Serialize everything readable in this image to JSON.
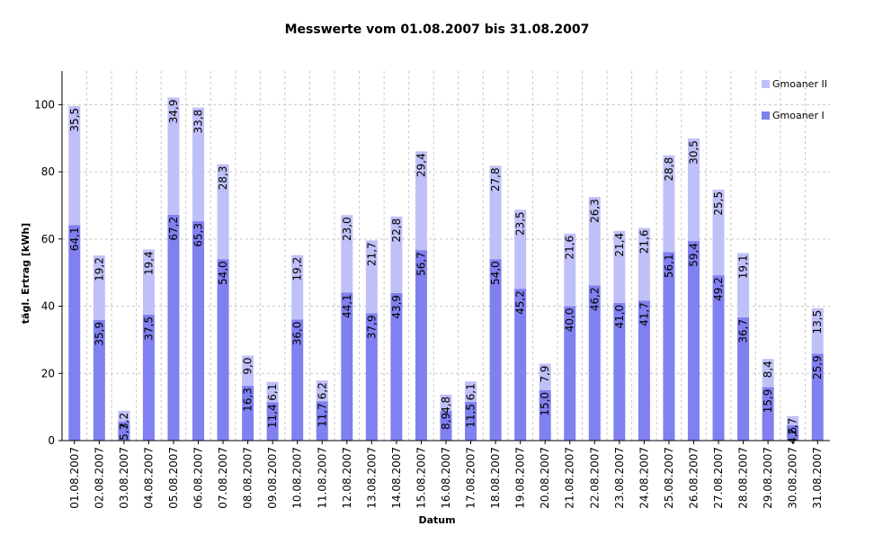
{
  "chart_data": {
    "type": "bar",
    "stacked": true,
    "title": "Messwerte vom 01.08.2007 bis 31.08.2007",
    "xlabel": "Datum",
    "ylabel": "tägl. Ertrag [kWh]",
    "ylim": [
      0,
      110
    ],
    "yticks": [
      0,
      20,
      40,
      60,
      80,
      100
    ],
    "grid": true,
    "legend_position": "top-right",
    "categories": [
      "01.08.2007",
      "02.08.2007",
      "03.08.2007",
      "04.08.2007",
      "05.08.2007",
      "06.08.2007",
      "07.08.2007",
      "08.08.2007",
      "09.08.2007",
      "10.08.2007",
      "11.08.2007",
      "12.08.2007",
      "13.08.2007",
      "14.08.2007",
      "15.08.2007",
      "16.08.2007",
      "17.08.2007",
      "18.08.2007",
      "19.08.2007",
      "20.08.2007",
      "21.08.2007",
      "22.08.2007",
      "23.08.2007",
      "24.08.2007",
      "25.08.2007",
      "26.08.2007",
      "27.08.2007",
      "28.08.2007",
      "29.08.2007",
      "30.08.2007",
      "31.08.2007"
    ],
    "series": [
      {
        "name": "Gmoaner I",
        "color": "#8080f0",
        "values": [
          64.1,
          35.9,
          5.7,
          37.5,
          67.2,
          65.3,
          54.0,
          16.3,
          11.4,
          36.0,
          11.7,
          44.1,
          37.9,
          43.9,
          56.7,
          8.9,
          11.5,
          54.0,
          45.2,
          15.0,
          40.0,
          46.2,
          41.0,
          41.7,
          56.1,
          59.4,
          49.2,
          36.7,
          15.9,
          4.6,
          25.9
        ],
        "labels": [
          "64,1",
          "35,9",
          "5,7",
          "37,5",
          "67,2",
          "65,3",
          "54,0",
          "16,3",
          "11,4",
          "36,0",
          "11,7",
          "44,1",
          "37,9",
          "43,9",
          "56,7",
          "8,9",
          "11,5",
          "54,0",
          "45,2",
          "15,0",
          "40,0",
          "46,2",
          "41,0",
          "41,7",
          "56,1",
          "59,4",
          "49,2",
          "36,7",
          "15,9",
          "4,6",
          "25,9"
        ]
      },
      {
        "name": "Gmoaner II",
        "color": "#c0c0f8",
        "values": [
          35.5,
          19.2,
          3.2,
          19.4,
          34.9,
          33.8,
          28.3,
          9.0,
          6.1,
          19.2,
          6.2,
          23.0,
          21.7,
          22.8,
          29.4,
          4.8,
          6.1,
          27.8,
          23.5,
          7.9,
          21.6,
          26.3,
          21.4,
          21.6,
          28.8,
          30.5,
          25.5,
          19.1,
          8.4,
          2.7,
          13.5
        ],
        "labels": [
          "35,5",
          "19,2",
          "3,2",
          "19,4",
          "34,9",
          "33,8",
          "28,3",
          "9,0",
          "6,1",
          "19,2",
          "6,2",
          "23,0",
          "21,7",
          "22,8",
          "29,4",
          "4,8",
          "6,1",
          "27,8",
          "23,5",
          "7,9",
          "21,6",
          "26,3",
          "21,4",
          "21,6",
          "28,8",
          "30,5",
          "25,5",
          "19,1",
          "8,4",
          "2,7",
          "13,5"
        ]
      }
    ]
  }
}
